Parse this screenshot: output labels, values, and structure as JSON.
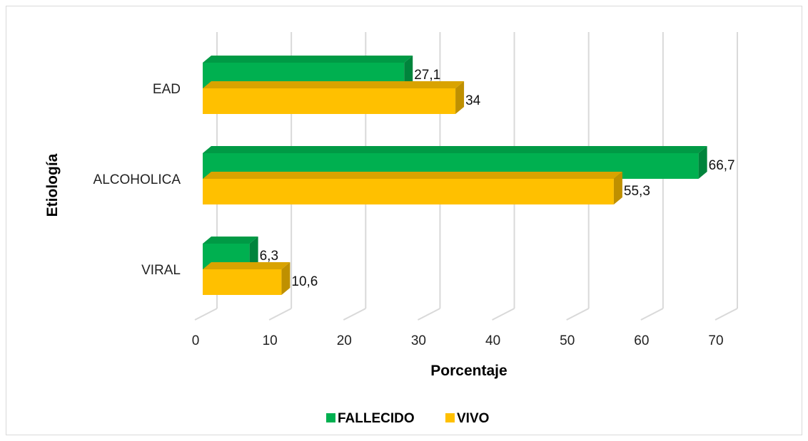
{
  "chart_data": {
    "type": "bar",
    "orientation": "horizontal",
    "style": "3d-clustered",
    "categories": [
      "EAD",
      "ALCOHOLICA",
      "VIRAL"
    ],
    "series": [
      {
        "name": "FALLECIDO",
        "values": [
          27.1,
          66.7,
          6.3
        ],
        "labels": [
          "27,1",
          "66,7",
          "6,3"
        ],
        "color": "#00b050",
        "side_color": "#00843c",
        "top_color": "#009a45"
      },
      {
        "name": "VIVO",
        "values": [
          34,
          55.3,
          10.6
        ],
        "labels": [
          "34",
          "55,3",
          "10,6"
        ],
        "color": "#ffc000",
        "side_color": "#bf9000",
        "top_color": "#d9a300"
      }
    ],
    "x_ticks": [
      "0",
      "10",
      "20",
      "30",
      "40",
      "50",
      "60",
      "70"
    ],
    "xlim": [
      0,
      70
    ],
    "xlabel": "Porcentaje",
    "ylabel": "Etiología",
    "grid": true,
    "legend_position": "bottom",
    "gridline_color": "#d9d9d9"
  }
}
